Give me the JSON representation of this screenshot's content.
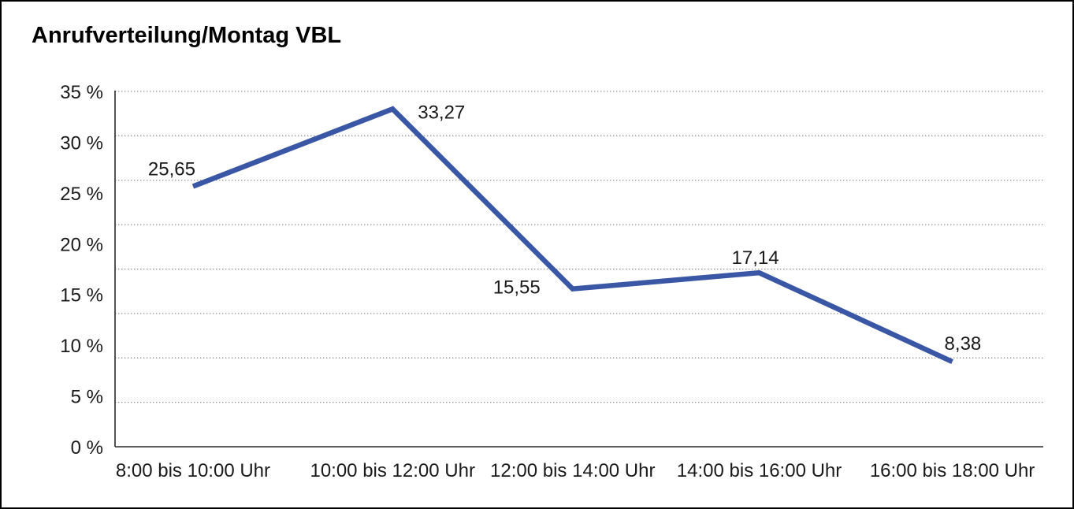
{
  "title": "Anrufverteilung/Montag VBL",
  "colors": {
    "line": "#3A57A5",
    "grid": "#8f8f8f",
    "axis": "#2a2a2a",
    "text": "#1a1a1a",
    "background": "#ffffff",
    "frame_border": "#000000"
  },
  "chart_data": {
    "type": "line",
    "title": "Anrufverteilung/Montag VBL",
    "categories": [
      "8:00 bis 10:00 Uhr",
      "10:00 bis 12:00 Uhr",
      "12:00 bis 14:00 Uhr",
      "14:00 bis 16:00 Uhr",
      "16:00 bis 18:00 Uhr"
    ],
    "values": [
      25.65,
      33.27,
      15.55,
      17.14,
      8.38
    ],
    "value_labels": [
      "25,65",
      "33,27",
      "15,55",
      "17,14",
      "8,38"
    ],
    "xlabel": "",
    "ylabel": "",
    "ylim": [
      0,
      35
    ],
    "ytick_values": [
      0,
      5,
      10,
      15,
      20,
      25,
      30,
      35
    ],
    "ytick_labels": [
      "0 %",
      "5 %",
      "10 %",
      "15 %",
      "20 %",
      "25 %",
      "30 %",
      "35 %"
    ],
    "grid": "horizontal-dotted",
    "gridline_intervals": 8,
    "legend": "none"
  }
}
